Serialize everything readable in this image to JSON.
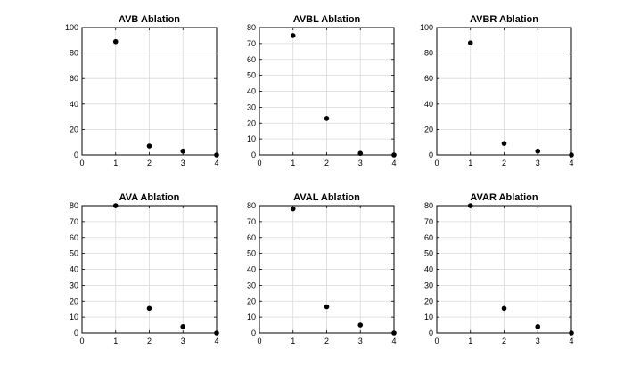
{
  "chart_data": [
    {
      "type": "scatter",
      "title": "AVB Ablation",
      "x": [
        1,
        2,
        3,
        4
      ],
      "y": [
        89,
        7,
        3,
        0
      ],
      "xlim": [
        0,
        4
      ],
      "ylim": [
        0,
        100
      ],
      "xticks": [
        0,
        1,
        2,
        3,
        4
      ],
      "yticks": [
        0,
        20,
        40,
        60,
        80,
        100
      ],
      "grid": true,
      "color": "#000000"
    },
    {
      "type": "scatter",
      "title": "AVBL Ablation",
      "x": [
        1,
        2,
        3,
        4
      ],
      "y": [
        75,
        23,
        1,
        0
      ],
      "xlim": [
        0,
        4
      ],
      "ylim": [
        0,
        80
      ],
      "xticks": [
        0,
        1,
        2,
        3,
        4
      ],
      "yticks": [
        0,
        10,
        20,
        30,
        40,
        50,
        60,
        70,
        80
      ],
      "grid": true,
      "color": "#000000"
    },
    {
      "type": "scatter",
      "title": "AVBR Ablation",
      "x": [
        1,
        2,
        3,
        4
      ],
      "y": [
        88,
        9,
        3,
        0
      ],
      "xlim": [
        0,
        4
      ],
      "ylim": [
        0,
        100
      ],
      "xticks": [
        0,
        1,
        2,
        3,
        4
      ],
      "yticks": [
        0,
        20,
        40,
        60,
        80,
        100
      ],
      "grid": true,
      "color": "#000000"
    },
    {
      "type": "scatter",
      "title": "AVA Ablation",
      "x": [
        1,
        2,
        3,
        4
      ],
      "y": [
        80,
        15.5,
        4,
        0
      ],
      "xlim": [
        0,
        4
      ],
      "ylim": [
        0,
        80
      ],
      "xticks": [
        0,
        1,
        2,
        3,
        4
      ],
      "yticks": [
        0,
        10,
        20,
        30,
        40,
        50,
        60,
        70,
        80
      ],
      "grid": true,
      "color": "#000000"
    },
    {
      "type": "scatter",
      "title": "AVAL Ablation",
      "x": [
        1,
        2,
        3,
        4
      ],
      "y": [
        78,
        16.5,
        5,
        0
      ],
      "xlim": [
        0,
        4
      ],
      "ylim": [
        0,
        80
      ],
      "xticks": [
        0,
        1,
        2,
        3,
        4
      ],
      "yticks": [
        0,
        10,
        20,
        30,
        40,
        50,
        60,
        70,
        80
      ],
      "grid": true,
      "color": "#000000"
    },
    {
      "type": "scatter",
      "title": "AVAR Ablation",
      "x": [
        1,
        2,
        3,
        4
      ],
      "y": [
        80,
        15.5,
        4,
        0
      ],
      "xlim": [
        0,
        4
      ],
      "ylim": [
        0,
        80
      ],
      "xticks": [
        0,
        1,
        2,
        3,
        4
      ],
      "yticks": [
        0,
        10,
        20,
        30,
        40,
        50,
        60,
        70,
        80
      ],
      "grid": true,
      "color": "#000000"
    }
  ]
}
